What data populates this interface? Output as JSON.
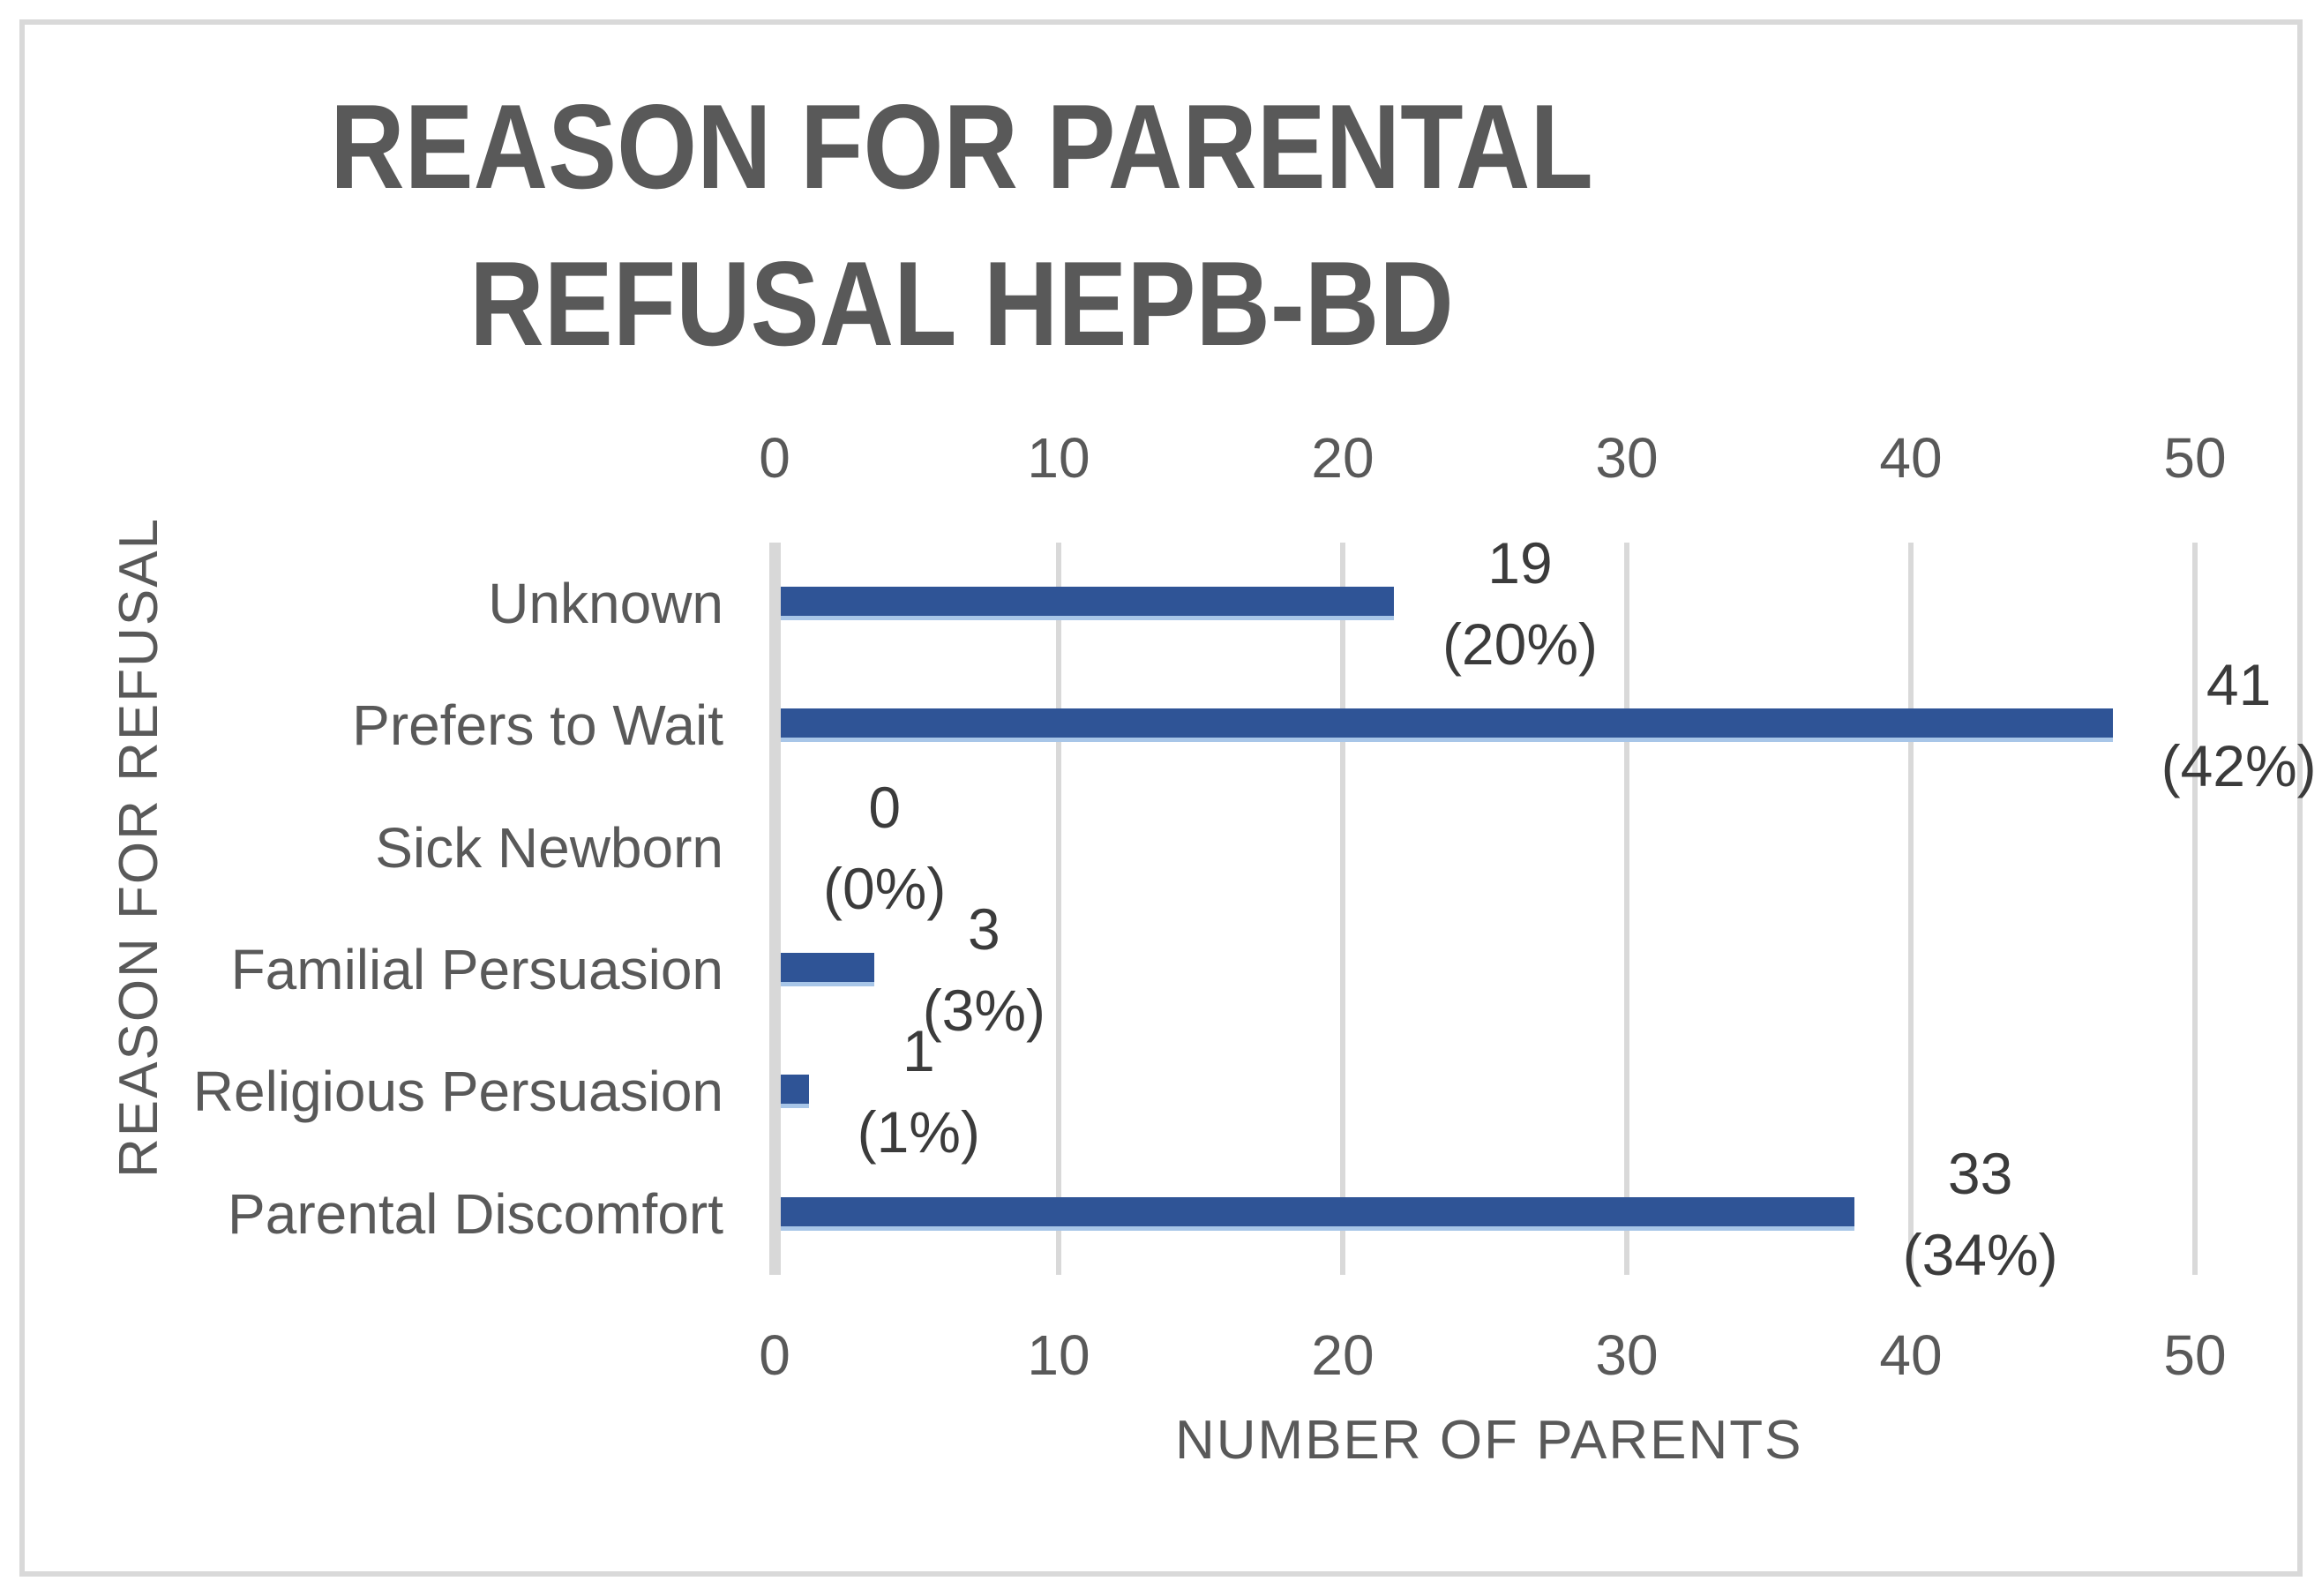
{
  "chart_data": {
    "type": "bar",
    "orientation": "horizontal",
    "title_line1": "REASON FOR PARENTAL",
    "title_line2": "REFUSAL HEPB-BD",
    "xlabel": "NUMBER OF PARENTS",
    "ylabel": "REASON FOR REFUSAL",
    "xlim": [
      0,
      50
    ],
    "tick_values": [
      0,
      10,
      20,
      30,
      40,
      50
    ],
    "tick_labels": [
      "0",
      "10",
      "20",
      "30",
      "40",
      "50"
    ],
    "tick_axes": [
      "top",
      "bottom"
    ],
    "grid": "vertical",
    "legend": "none",
    "categories": [
      "Unknown",
      "Prefers to Wait",
      "Sick Newborn",
      "Familial Persuasion",
      "Religious Persuasion",
      "Parental Discomfort"
    ],
    "series": [
      {
        "name": "NUMBER OF PARENTS",
        "values": [
          19,
          41,
          0,
          3,
          1,
          33
        ],
        "percent_labels": [
          "(20%)",
          "(42%)",
          "(0%)",
          "(3%)",
          "(1%)",
          "(34%)"
        ]
      }
    ],
    "data_label_lines": [
      [
        "19",
        "(20%)"
      ],
      [
        "41",
        "(42%)"
      ],
      [
        "0",
        "(0%)"
      ],
      [
        "3",
        "(3%)"
      ],
      [
        "1",
        "(1%)"
      ],
      [
        "33",
        "(34%)"
      ]
    ],
    "bar_visual_lengths": [
      21.8,
      47.1,
      0,
      3.5,
      1.2,
      38.0
    ],
    "colors": {
      "bar_fill": "#2F5496",
      "bar_bottom_edge": "#A8C6E8",
      "gridline": "#D9D9D9",
      "axis_line": "#D8D8D8",
      "chart_border": "#D9D9D9",
      "title_text": "#595959",
      "axis_text": "#595959",
      "data_label_text": "#3B3B3B",
      "background": "#FFFFFF"
    }
  }
}
